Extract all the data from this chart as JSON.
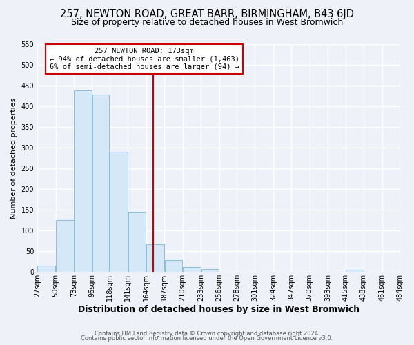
{
  "title": "257, NEWTON ROAD, GREAT BARR, BIRMINGHAM, B43 6JD",
  "subtitle": "Size of property relative to detached houses in West Bromwich",
  "xlabel": "Distribution of detached houses by size in West Bromwich",
  "ylabel": "Number of detached properties",
  "bar_heights": [
    15,
    125,
    438,
    428,
    290,
    145,
    67,
    28,
    12,
    7,
    0,
    0,
    0,
    0,
    0,
    0,
    0,
    5,
    0,
    0
  ],
  "bin_edges": [
    27,
    50,
    73,
    96,
    118,
    141,
    164,
    187,
    210,
    233,
    256,
    278,
    301,
    324,
    347,
    370,
    393,
    415,
    438,
    461,
    484
  ],
  "tick_labels": [
    "27sqm",
    "50sqm",
    "73sqm",
    "96sqm",
    "118sqm",
    "141sqm",
    "164sqm",
    "187sqm",
    "210sqm",
    "233sqm",
    "256sqm",
    "278sqm",
    "301sqm",
    "324sqm",
    "347sqm",
    "370sqm",
    "393sqm",
    "415sqm",
    "438sqm",
    "461sqm",
    "484sqm"
  ],
  "bar_fill_color": "#d4e8f7",
  "bar_edge_color": "#8cbdd9",
  "vline_x": 173,
  "vline_color": "#cc0000",
  "ylim": [
    0,
    550
  ],
  "yticks": [
    0,
    50,
    100,
    150,
    200,
    250,
    300,
    350,
    400,
    450,
    500,
    550
  ],
  "annotation_title": "257 NEWTON ROAD: 173sqm",
  "annotation_line1": "← 94% of detached houses are smaller (1,463)",
  "annotation_line2": "6% of semi-detached houses are larger (94) →",
  "annotation_box_color": "#ffffff",
  "annotation_box_edge": "#cc0000",
  "footer1": "Contains HM Land Registry data © Crown copyright and database right 2024.",
  "footer2": "Contains public sector information licensed under the Open Government Licence v3.0.",
  "background_color": "#eef2f8",
  "grid_color": "#ffffff",
  "title_fontsize": 10.5,
  "subtitle_fontsize": 9,
  "xlabel_fontsize": 9,
  "ylabel_fontsize": 8,
  "tick_fontsize": 7,
  "annotation_fontsize": 7.5,
  "footer_fontsize": 6
}
